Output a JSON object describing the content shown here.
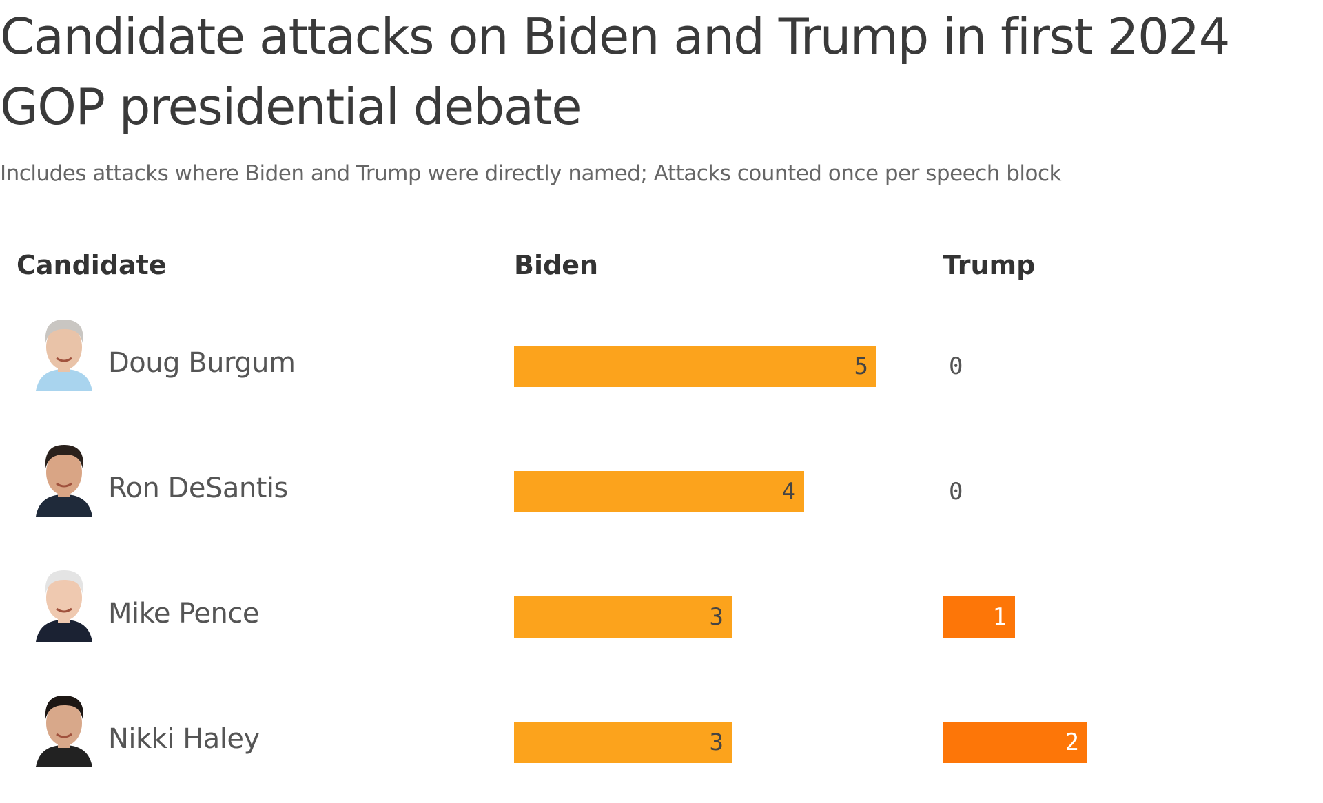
{
  "title": "Candidate attacks on Biden and Trump in first 2024 GOP presidential debate",
  "subtitle": "Includes attacks where Biden and Trump were directly named; Attacks counted once per speech block",
  "colors": {
    "biden": "#fca31c",
    "trump": "#fd7608"
  },
  "chart_data": {
    "type": "bar",
    "columns": [
      "Candidate",
      "Biden",
      "Trump"
    ],
    "categories": [
      "Doug Burgum",
      "Ron DeSantis",
      "Mike Pence",
      "Nikki Haley"
    ],
    "series": [
      {
        "name": "Biden",
        "values": [
          5,
          4,
          3,
          3
        ]
      },
      {
        "name": "Trump",
        "values": [
          0,
          0,
          1,
          2
        ]
      }
    ],
    "xlim": [
      0,
      5
    ]
  }
}
